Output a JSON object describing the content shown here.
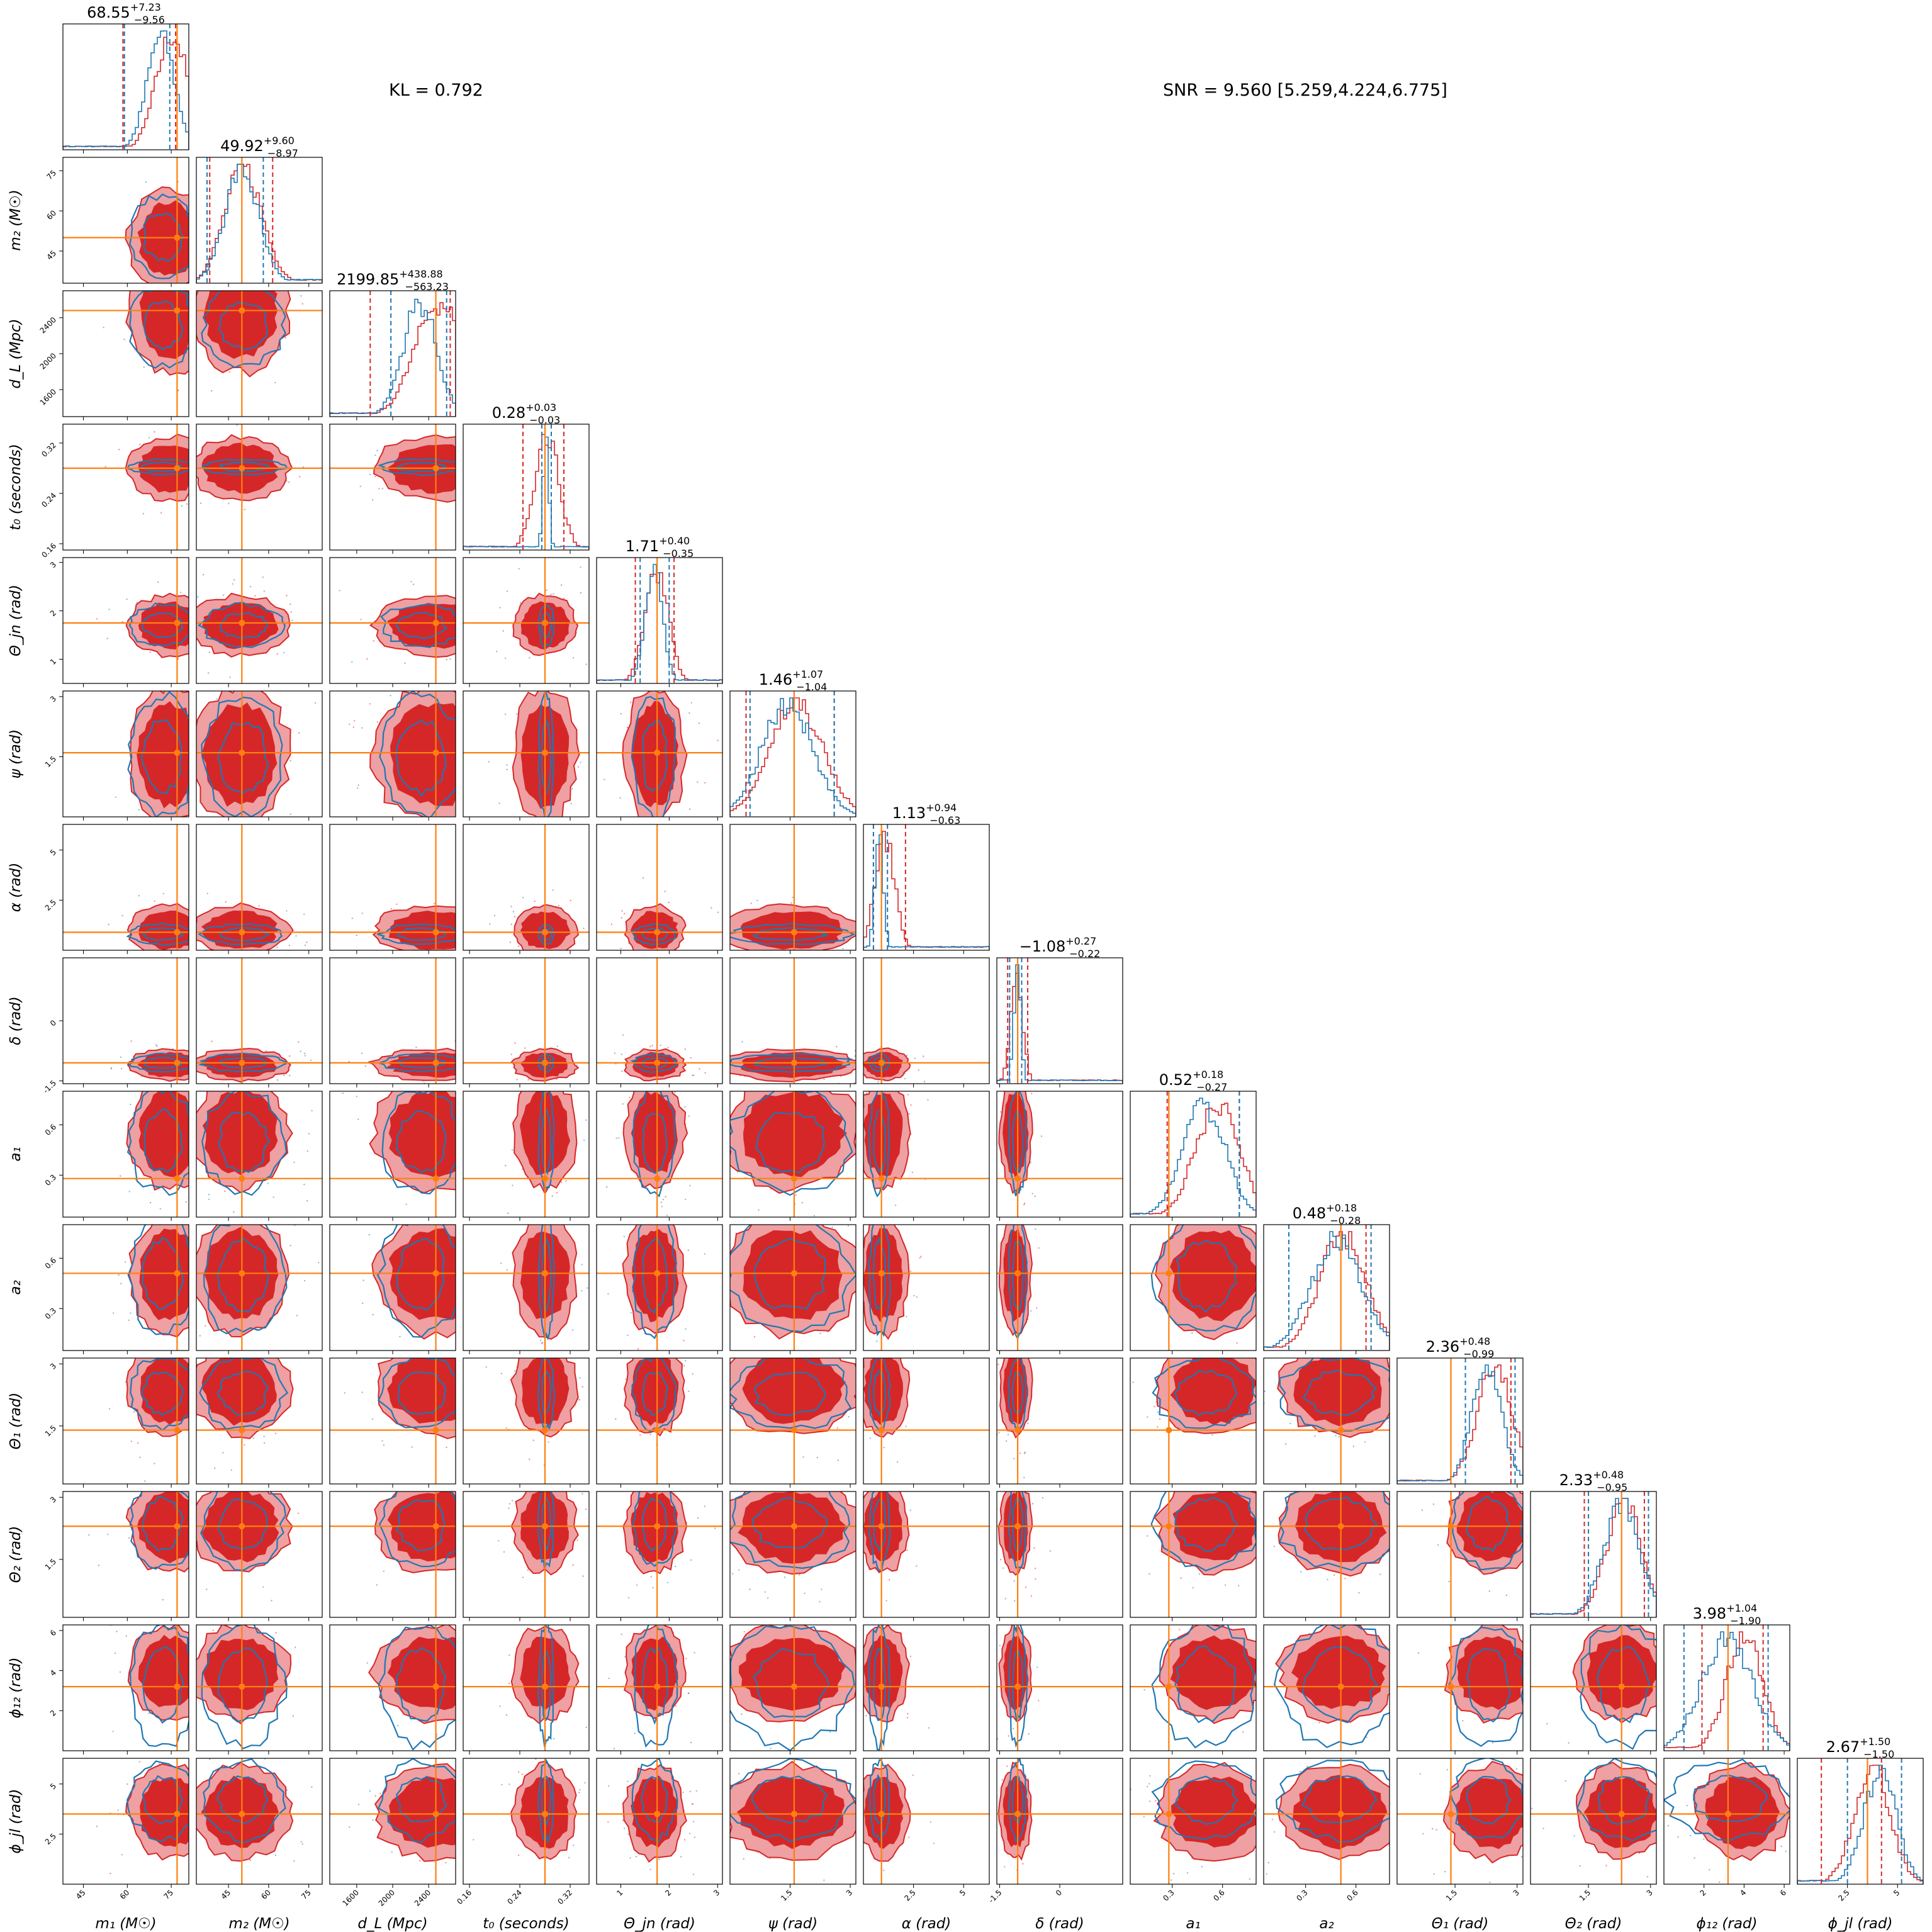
{
  "annotations": {
    "kl": "KL = 0.792",
    "snr": "SNR = 9.560 [5.259,4.224,6.775]"
  },
  "colors": {
    "posterior_a": "#d62728",
    "posterior_a_light": "#eea0a2",
    "posterior_b": "#1f77b4",
    "truth": "#ff7f0e"
  },
  "chart_data": {
    "type": "corner",
    "series": [
      {
        "name": "",
        "color": "#d62728",
        "style": "filled contours + step histogram"
      },
      {
        "name": "",
        "color": "#1f77b4",
        "style": "line contours + step histogram"
      }
    ],
    "parameters": [
      {
        "label": "m₁ (M☉)",
        "summary": "68.55",
        "plus": "+7.23",
        "minus": "−9.56",
        "range": [
          38,
          81
        ],
        "ticks": [
          45,
          60,
          75
        ],
        "truth": 77,
        "median_a": 74.5,
        "median_b": 72,
        "q_a": [
          58.5,
          76.5
        ],
        "q_b": [
          59,
          74.5
        ]
      },
      {
        "label": "m₂ (M☉)",
        "summary": "49.92",
        "plus": "+9.60",
        "minus": "−8.97",
        "range": [
          33,
          80
        ],
        "ticks": [
          45,
          60,
          75
        ],
        "truth": 50,
        "median_a": 49.5,
        "median_b": 50.5,
        "q_a": [
          38,
          61.5
        ],
        "q_b": [
          37,
          58
        ]
      },
      {
        "label": "d_L (Mpc)",
        "summary": "2199.85",
        "plus": "+438.88",
        "minus": "−563.23",
        "range": [
          1300,
          2700
        ],
        "ticks": [
          1600,
          2000,
          2400
        ],
        "truth": 2480,
        "median_a": 2480,
        "median_b": 2320,
        "q_a": [
          1750,
          2640
        ],
        "q_b": [
          1980,
          2600
        ]
      },
      {
        "label": "t₀ (seconds)",
        "summary": "0.28",
        "plus": "+0.03",
        "minus": "−0.03",
        "range": [
          0.15,
          0.35
        ],
        "ticks": [
          0.16,
          0.24,
          0.32
        ],
        "truth": 0.28,
        "median_a": 0.28,
        "median_b": 0.282,
        "q_a": [
          0.245,
          0.31
        ],
        "q_b": [
          0.275,
          0.29
        ]
      },
      {
        "label": "Θ_jn (rad)",
        "summary": "1.71",
        "plus": "+0.40",
        "minus": "−0.35",
        "range": [
          0.5,
          3.1
        ],
        "ticks": [
          1,
          2,
          3
        ],
        "truth": 1.75,
        "median_a": 1.7,
        "median_b": 1.7,
        "q_a": [
          1.3,
          2.1
        ],
        "q_b": [
          1.4,
          2.0
        ]
      },
      {
        "label": "ψ (rad)",
        "summary": "1.46",
        "plus": "+1.07",
        "minus": "−1.04",
        "range": [
          0,
          3.14
        ],
        "ticks": [
          1.5,
          3.0
        ],
        "truth": 1.6,
        "median_a": 1.55,
        "median_b": 1.5,
        "q_a": [
          0.4,
          2.6
        ],
        "q_b": [
          0.5,
          2.6
        ]
      },
      {
        "label": "α (rad)",
        "summary": "1.13",
        "plus": "+0.94",
        "minus": "−0.63",
        "range": [
          0,
          6.28
        ],
        "ticks": [
          2.5,
          5.0
        ],
        "truth": 0.9,
        "median_a": 1.0,
        "median_b": 0.8,
        "q_a": [
          0.5,
          2.1
        ],
        "q_b": [
          0.5,
          1.2
        ]
      },
      {
        "label": "δ (rad)",
        "summary": "−1.08",
        "plus": "+0.27",
        "minus": "−0.22",
        "range": [
          -1.57,
          1.57
        ],
        "ticks": [
          -1.5,
          0.0
        ],
        "truth": -1.05,
        "median_a": -1.1,
        "median_b": -1.05,
        "q_a": [
          -1.3,
          -0.8
        ],
        "q_b": [
          -1.25,
          -0.95
        ]
      },
      {
        "label": "a₁",
        "summary": "0.52",
        "plus": "+0.18",
        "minus": "−0.27",
        "range": [
          0.05,
          0.8
        ],
        "ticks": [
          0.3,
          0.6
        ],
        "truth": 0.28,
        "median_a": 0.55,
        "median_b": 0.5,
        "q_a": [
          0.27,
          0.7
        ],
        "q_b": [
          0.28,
          0.7
        ]
      },
      {
        "label": "a₂",
        "summary": "0.48",
        "plus": "+0.18",
        "minus": "−0.28",
        "range": [
          0.05,
          0.8
        ],
        "ticks": [
          0.3,
          0.6
        ],
        "truth": 0.51,
        "median_a": 0.5,
        "median_b": 0.5,
        "q_a": [
          0.2,
          0.66
        ],
        "q_b": [
          0.2,
          0.69
        ]
      },
      {
        "label": "Θ₁ (rad)",
        "summary": "2.36",
        "plus": "+0.48",
        "minus": "−0.99",
        "range": [
          0.1,
          3.14
        ],
        "ticks": [
          1.5,
          3.0
        ],
        "truth": 1.4,
        "median_a": 2.4,
        "median_b": 2.3,
        "q_a": [
          1.4,
          2.85
        ],
        "q_b": [
          1.75,
          2.95
        ]
      },
      {
        "label": "Θ₂ (rad)",
        "summary": "2.33",
        "plus": "+0.48",
        "minus": "−0.95",
        "range": [
          0.1,
          3.14
        ],
        "ticks": [
          1.5,
          3.0
        ],
        "truth": 2.3,
        "median_a": 2.3,
        "median_b": 2.35,
        "q_a": [
          1.4,
          2.85
        ],
        "q_b": [
          1.5,
          2.95
        ]
      },
      {
        "label": "ϕ₁₂ (rad)",
        "summary": "3.98",
        "plus": "+1.04",
        "minus": "−1.90",
        "range": [
          0,
          6.28
        ],
        "ticks": [
          2,
          4,
          6
        ],
        "truth": 3.2,
        "median_a": 3.9,
        "median_b": 3.3,
        "q_a": [
          1.9,
          4.95
        ],
        "q_b": [
          1.0,
          5.2
        ]
      },
      {
        "label": "ϕ_jl (rad)",
        "summary": "2.67",
        "plus": "+1.50",
        "minus": "−1.50",
        "range": [
          0,
          6.28
        ],
        "ticks": [
          2.5,
          5.0
        ],
        "truth": 3.5,
        "median_a": 3.6,
        "median_b": 4.2,
        "q_a": [
          1.2,
          4.2
        ],
        "q_b": [
          2.5,
          5.2
        ]
      }
    ]
  }
}
